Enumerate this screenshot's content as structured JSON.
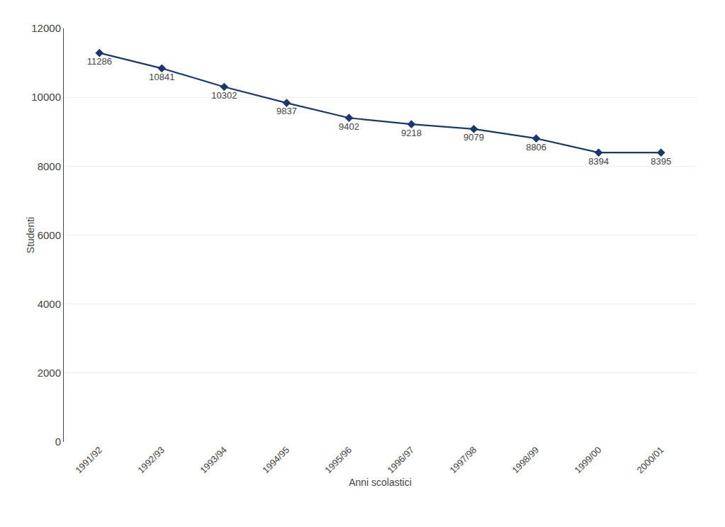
{
  "chart_data": {
    "type": "line",
    "categories": [
      "1991/92",
      "1992/93",
      "1993/94",
      "1994/95",
      "1995/96",
      "1996/97",
      "1997/98",
      "1998/99",
      "1999/00",
      "2000/01"
    ],
    "values": [
      11286,
      10841,
      10302,
      9837,
      9402,
      9218,
      9079,
      8806,
      8394,
      8395
    ],
    "color": "#1a3870",
    "marker": "diamond",
    "xlabel": "Anni scolastici",
    "ylabel": "Studenti",
    "ylim": [
      0,
      12000
    ],
    "yticks": [
      0,
      2000,
      4000,
      6000,
      8000,
      10000,
      12000
    ],
    "grid": true,
    "data_labels": true
  }
}
